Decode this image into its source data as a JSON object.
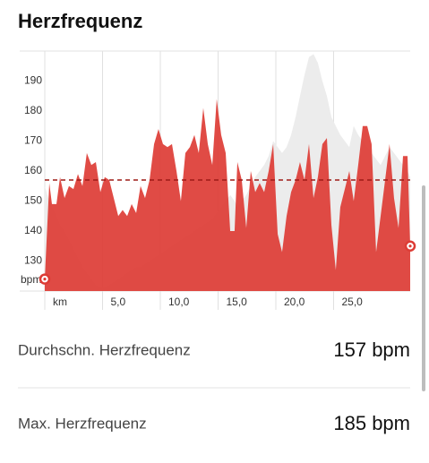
{
  "header": {
    "title": "Herzfrequenz"
  },
  "chart_data": {
    "type": "area",
    "y_unit": "bpm",
    "x": [
      0,
      0.39,
      0.62,
      1.01,
      1.32,
      1.71,
      2.09,
      2.48,
      2.87,
      3.26,
      3.64,
      4.03,
      4.42,
      4.81,
      5.19,
      5.58,
      5.97,
      6.36,
      6.74,
      7.13,
      7.52,
      7.91,
      8.29,
      8.68,
      9.07,
      9.46,
      9.84,
      10.23,
      10.62,
      11.01,
      11.4,
      11.78,
      12.17,
      12.56,
      12.95,
      13.33,
      13.72,
      14.11,
      14.5,
      14.88,
      15.27,
      15.66,
      16.05,
      16.43,
      16.67,
      17.05,
      17.44,
      17.83,
      18.22,
      18.6,
      18.99,
      19.38,
      19.77,
      20.16,
      20.54,
      20.93,
      21.32,
      21.71,
      22.09,
      22.48,
      22.87,
      23.26,
      23.64,
      24.03,
      24.42,
      24.81,
      25.19,
      25.58,
      25.97,
      26.36,
      26.74,
      27.13,
      27.52,
      27.91,
      28.29,
      28.68,
      29.07,
      29.46,
      29.84,
      30.23,
      30.62,
      31.01,
      31.4,
      31.63
    ],
    "series": [
      {
        "color": "#ececec",
        "values": [
          155,
          150,
          148,
          145,
          142,
          140,
          137,
          134,
          131,
          128,
          126,
          124,
          122,
          121,
          121,
          122,
          123,
          124,
          125,
          126,
          127,
          128,
          128,
          129,
          130,
          131,
          132,
          133,
          134,
          135,
          136,
          137,
          138,
          139,
          140,
          141,
          142,
          143,
          144,
          146,
          148,
          150,
          152,
          150,
          148,
          150,
          152,
          155,
          158,
          160,
          162,
          165,
          170,
          168,
          166,
          168,
          172,
          178,
          185,
          192,
          198,
          199,
          196,
          190,
          185,
          178,
          175,
          172,
          170,
          168,
          175,
          172,
          170,
          168,
          166,
          164,
          162,
          165,
          168,
          166,
          164,
          162,
          160,
          158
        ]
      },
      {
        "color": "#dd3c35",
        "values": [
          124,
          156,
          149,
          149,
          158,
          151,
          155,
          154,
          159,
          155,
          166,
          162,
          163,
          153,
          158,
          157,
          151,
          145,
          147,
          145,
          149,
          146,
          155,
          151,
          157,
          169,
          174,
          169,
          168,
          169,
          160,
          150,
          166,
          168,
          172,
          166,
          181,
          169,
          162,
          184,
          172,
          166,
          140,
          140,
          163,
          157,
          141,
          160,
          153,
          156,
          153,
          160,
          169,
          139,
          133,
          145,
          153,
          157,
          163,
          157,
          169,
          151,
          158,
          169,
          171,
          142,
          127,
          148,
          154,
          160,
          150,
          162,
          175,
          175,
          169,
          133,
          145,
          157,
          169,
          151,
          141,
          165,
          165,
          135
        ]
      }
    ],
    "average": 157,
    "average_color": "#9e1b17",
    "xlim": [
      0,
      31.63
    ],
    "ylim": [
      120,
      200
    ],
    "xticks": [
      {
        "value": 0,
        "label": "km"
      },
      {
        "value": 5,
        "label": "5,0"
      },
      {
        "value": 10,
        "label": "10,0"
      },
      {
        "value": 15,
        "label": "15,0"
      },
      {
        "value": 20,
        "label": "20,0"
      },
      {
        "value": 25,
        "label": "25,0"
      }
    ],
    "yticks": [
      130,
      140,
      150,
      160,
      170,
      180,
      190
    ]
  },
  "stats": [
    {
      "label": "Durchschn. Herzfrequenz",
      "value": "157 bpm"
    },
    {
      "label": "Max. Herzfrequenz",
      "value": "185 bpm"
    }
  ]
}
